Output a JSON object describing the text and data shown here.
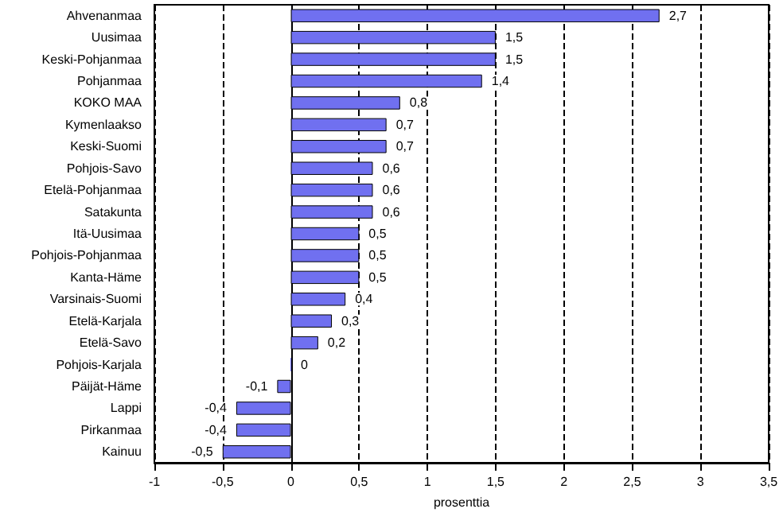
{
  "chart_data": {
    "type": "bar",
    "orientation": "horizontal",
    "xlabel": "prosenttia",
    "categories": [
      "Ahvenanmaa",
      "Uusimaa",
      "Keski-Pohjanmaa",
      "Pohjanmaa",
      "KOKO MAA",
      "Kymenlaakso",
      "Keski-Suomi",
      "Pohjois-Savo",
      "Etelä-Pohjanmaa",
      "Satakunta",
      "Itä-Uusimaa",
      "Pohjois-Pohjanmaa",
      "Kanta-Häme",
      "Varsinais-Suomi",
      "Etelä-Karjala",
      "Etelä-Savo",
      "Pohjois-Karjala",
      "Päijät-Häme",
      "Lappi",
      "Pirkanmaa",
      "Kainuu"
    ],
    "values": [
      2.7,
      1.5,
      1.5,
      1.4,
      0.8,
      0.7,
      0.7,
      0.6,
      0.6,
      0.6,
      0.5,
      0.5,
      0.5,
      0.4,
      0.3,
      0.2,
      0,
      -0.1,
      -0.4,
      -0.4,
      -0.5
    ],
    "value_labels": [
      "2,7",
      "1,5",
      "1,5",
      "1,4",
      "0,8",
      "0,7",
      "0,7",
      "0,6",
      "0,6",
      "0,6",
      "0,5",
      "0,5",
      "0,5",
      "0,4",
      "0,3",
      "0,2",
      "0",
      "-0,1",
      "-0,4",
      "-0,4",
      "-0,5"
    ],
    "color": "#7070f0",
    "xlim": [
      -1,
      3.5
    ],
    "xticks": [
      -1,
      {
        "value": -0.5,
        "label": "-0,5"
      },
      0,
      {
        "value": 0.5,
        "label": "0,5"
      },
      1,
      {
        "value": 1.5,
        "label": "1,5"
      },
      2,
      {
        "value": 2.5,
        "label": "2,5"
      },
      3,
      {
        "value": 3.5,
        "label": "3,5"
      }
    ],
    "grid": "x",
    "line_style": "dashed"
  }
}
